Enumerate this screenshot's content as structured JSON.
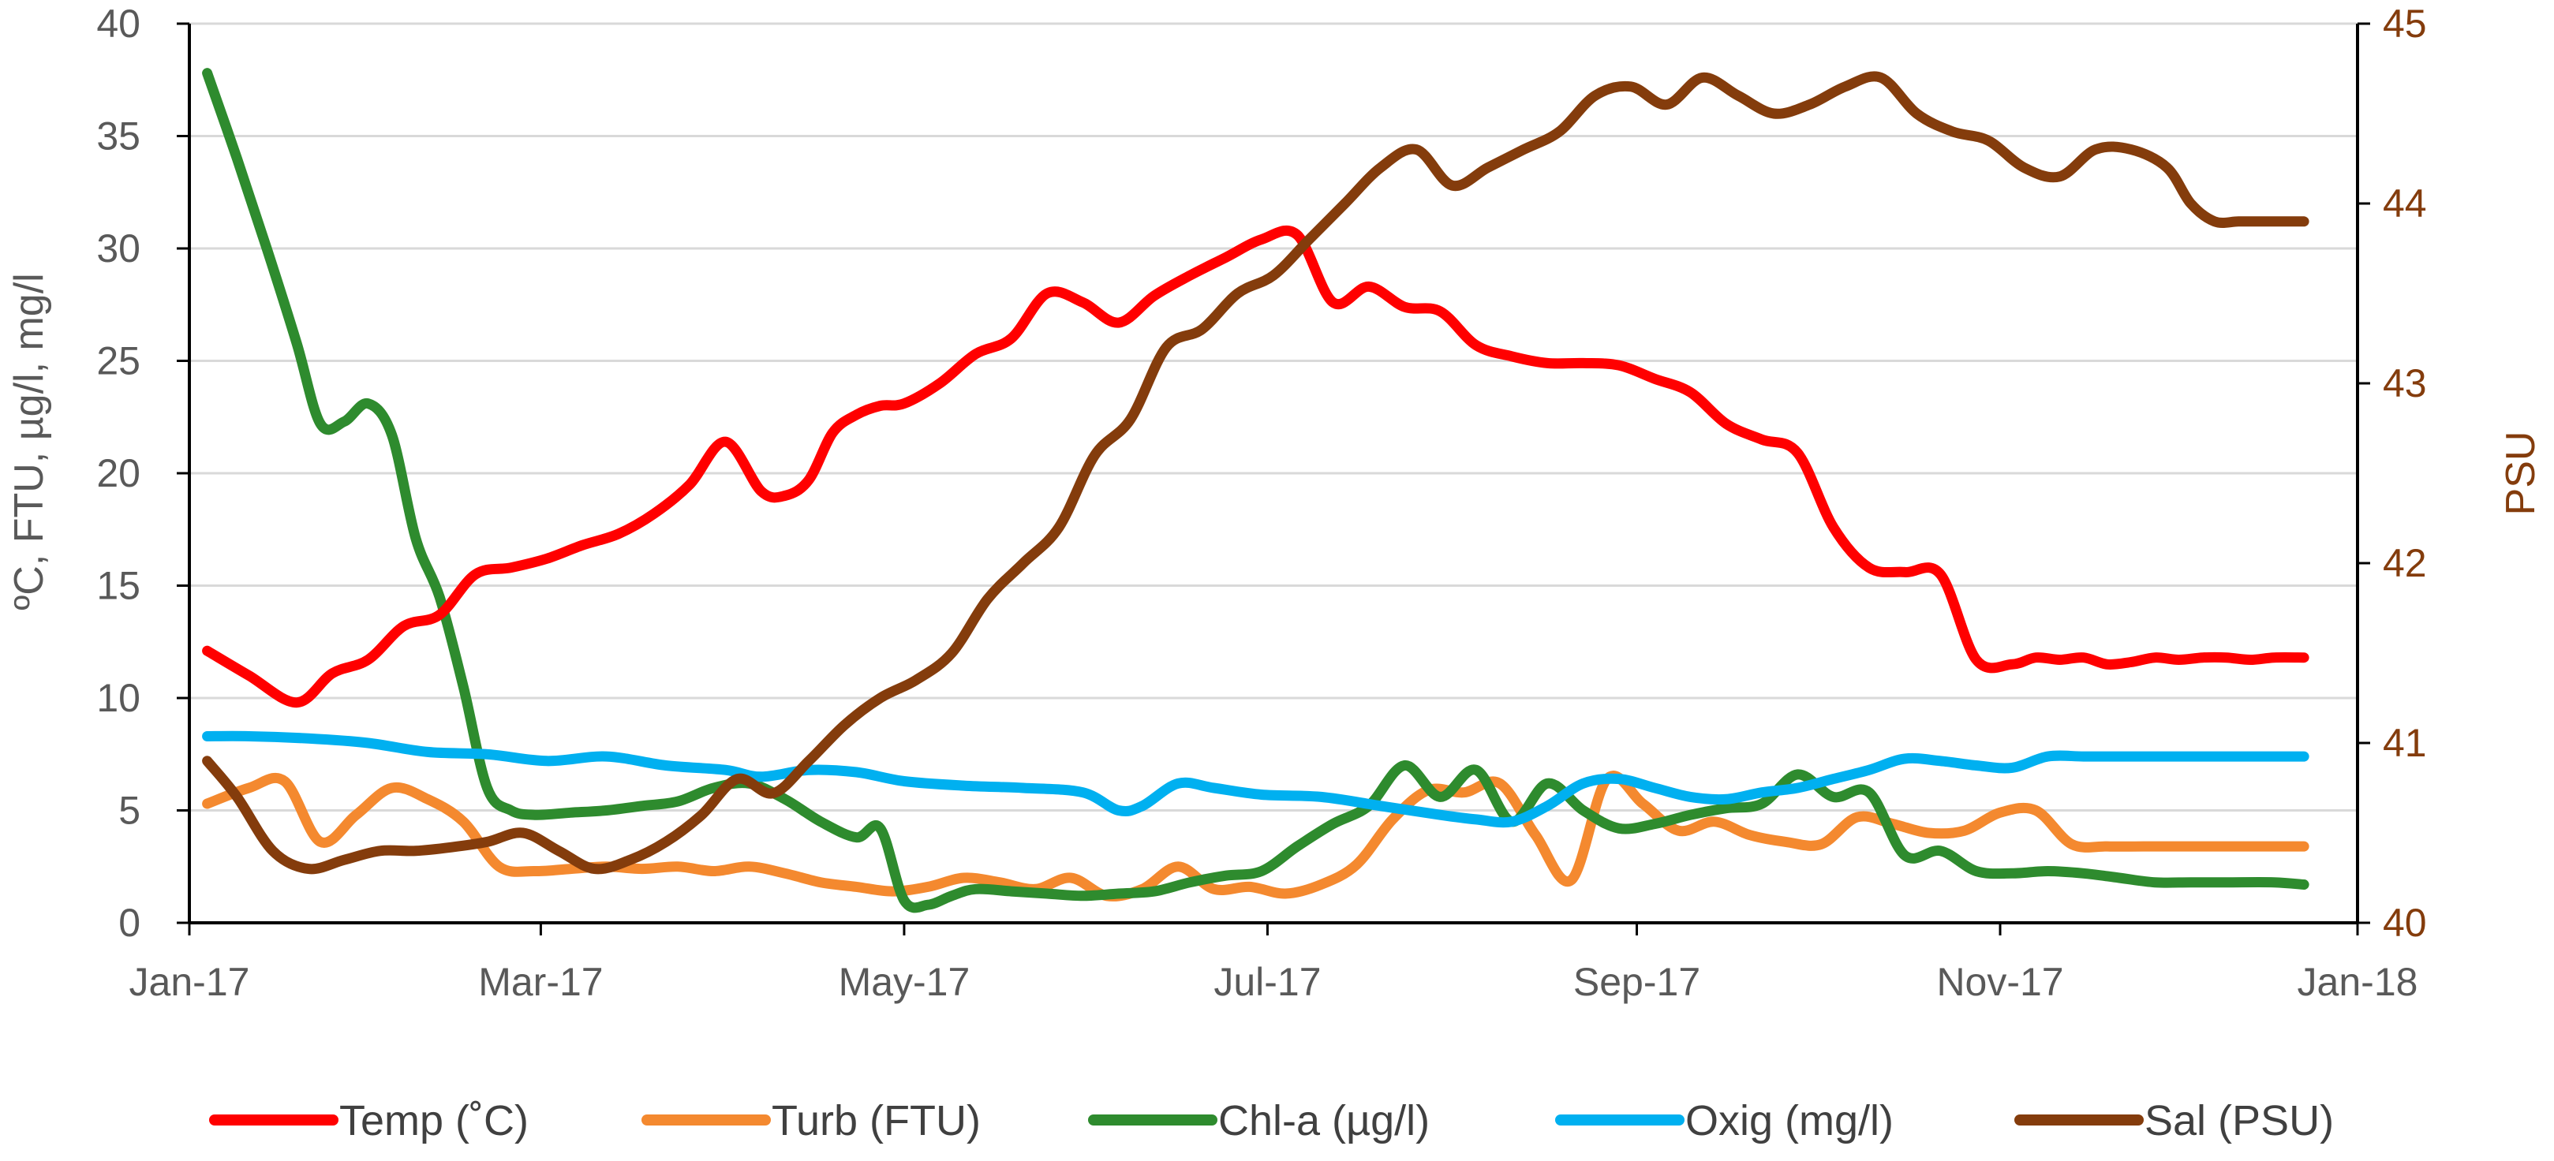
{
  "chart_data": {
    "type": "line",
    "xlabel": "",
    "ylabel": "ºC, FTU, µg/l, mg/l",
    "y2label": "PSU",
    "ylim": [
      0,
      40
    ],
    "yticks": [
      0,
      5,
      10,
      15,
      20,
      25,
      30,
      35,
      40
    ],
    "y2lim": [
      40,
      45
    ],
    "y2ticks": [
      40,
      41,
      42,
      43,
      44,
      45
    ],
    "xlim": [
      0,
      364
    ],
    "xticks": [
      0,
      59,
      120,
      181,
      243,
      304,
      364
    ],
    "xtick_labels": [
      "Jan-17",
      "Mar-17",
      "May-17",
      "Jul-17",
      "Sep-17",
      "Nov-17",
      "Jan-18"
    ],
    "grid": true,
    "legend_position": "bottom",
    "colors": {
      "axis_left": "#595959",
      "axis_right": "#843C0C",
      "grid": "#d9d9d9"
    },
    "series": [
      {
        "name": "Temp (˚C)",
        "axis": "left",
        "color": "#FF0000",
        "x": [
          3,
          10,
          18,
          24,
          30,
          36,
          42,
          48,
          54,
          60,
          66,
          72,
          78,
          84,
          90,
          96,
          100,
          104,
          108,
          112,
          116,
          120,
          126,
          132,
          138,
          144,
          150,
          156,
          162,
          168,
          174,
          180,
          186,
          192,
          198,
          204,
          210,
          216,
          222,
          228,
          234,
          240,
          246,
          252,
          258,
          264,
          270,
          276,
          282,
          288,
          294,
          300,
          306,
          310,
          314,
          318,
          322,
          326,
          330,
          334,
          338,
          342,
          346,
          350,
          355
        ],
        "values": [
          12.1,
          11.0,
          9.8,
          11.1,
          11.7,
          13.2,
          13.7,
          15.5,
          15.8,
          16.2,
          16.8,
          17.3,
          18.2,
          19.5,
          21.4,
          19.2,
          19.0,
          19.7,
          21.8,
          22.6,
          23.0,
          23.1,
          24.0,
          25.3,
          26.0,
          28.0,
          27.6,
          26.7,
          27.9,
          28.8,
          29.6,
          30.4,
          30.6,
          27.6,
          28.3,
          27.4,
          27.2,
          25.7,
          25.2,
          24.9,
          24.9,
          24.8,
          24.2,
          23.6,
          22.2,
          21.5,
          20.9,
          17.6,
          15.8,
          15.6,
          15.5,
          11.7,
          11.5,
          11.8,
          11.7,
          11.8,
          11.5,
          11.6,
          11.8,
          11.7,
          11.8,
          11.8,
          11.7,
          11.8,
          11.8
        ]
      },
      {
        "name": "Turb (FTU)",
        "axis": "left",
        "color": "#F4892F",
        "x": [
          3,
          10,
          16,
          22,
          28,
          34,
          40,
          46,
          52,
          58,
          64,
          70,
          76,
          82,
          88,
          94,
          100,
          106,
          112,
          118,
          124,
          130,
          136,
          142,
          148,
          154,
          160,
          166,
          172,
          178,
          184,
          190,
          196,
          202,
          208,
          214,
          220,
          226,
          232,
          238,
          244,
          250,
          256,
          262,
          268,
          274,
          280,
          286,
          292,
          298,
          304,
          310,
          316,
          322,
          328,
          334,
          340,
          346,
          352,
          355
        ],
        "values": [
          5.3,
          6.0,
          6.3,
          3.6,
          4.8,
          6.0,
          5.5,
          4.5,
          2.5,
          2.3,
          2.4,
          2.5,
          2.4,
          2.5,
          2.3,
          2.5,
          2.2,
          1.8,
          1.6,
          1.4,
          1.6,
          2.0,
          1.8,
          1.5,
          2.0,
          1.2,
          1.5,
          2.5,
          1.5,
          1.6,
          1.3,
          1.7,
          2.6,
          4.6,
          5.9,
          5.8,
          6.2,
          3.9,
          1.9,
          6.4,
          5.3,
          4.1,
          4.5,
          3.9,
          3.6,
          3.5,
          4.7,
          4.4,
          4.0,
          4.1,
          4.9,
          5.0,
          3.5,
          3.4,
          3.4,
          3.4,
          3.4,
          3.4,
          3.4,
          3.4
        ]
      },
      {
        "name": "Chl-a (µg/l)",
        "axis": "left",
        "color": "#2E8B2E",
        "x": [
          3,
          8,
          13,
          18,
          22,
          26,
          30,
          34,
          38,
          42,
          46,
          50,
          54,
          58,
          64,
          70,
          76,
          82,
          88,
          94,
          100,
          106,
          112,
          116,
          120,
          124,
          128,
          132,
          138,
          144,
          150,
          156,
          162,
          168,
          174,
          180,
          186,
          192,
          198,
          204,
          210,
          216,
          222,
          228,
          234,
          240,
          246,
          252,
          258,
          264,
          270,
          276,
          282,
          288,
          294,
          300,
          306,
          312,
          318,
          324,
          330,
          336,
          342,
          350,
          355
        ],
        "values": [
          37.8,
          34.0,
          30.0,
          25.8,
          22.2,
          22.3,
          23.1,
          21.7,
          17.1,
          14.5,
          10.5,
          6.0,
          5.0,
          4.8,
          4.9,
          5.0,
          5.2,
          5.4,
          6.0,
          6.2,
          5.5,
          4.5,
          3.8,
          4.2,
          1.0,
          0.8,
          1.2,
          1.5,
          1.4,
          1.3,
          1.2,
          1.3,
          1.4,
          1.8,
          2.1,
          2.3,
          3.4,
          4.4,
          5.2,
          7.0,
          5.6,
          6.8,
          4.5,
          6.2,
          5.0,
          4.2,
          4.4,
          4.8,
          5.1,
          5.3,
          6.6,
          5.6,
          5.8,
          3.0,
          3.2,
          2.3,
          2.2,
          2.3,
          2.2,
          2.0,
          1.8,
          1.8,
          1.8,
          1.8,
          1.7
        ]
      },
      {
        "name": "Oxig (mg/l)",
        "axis": "left",
        "color": "#00B0F0",
        "x": [
          3,
          10,
          20,
          30,
          40,
          50,
          60,
          70,
          80,
          90,
          96,
          104,
          112,
          120,
          130,
          140,
          150,
          156,
          160,
          166,
          172,
          180,
          190,
          200,
          210,
          216,
          222,
          228,
          234,
          240,
          246,
          252,
          258,
          264,
          270,
          276,
          282,
          288,
          294,
          300,
          306,
          312,
          318,
          324,
          330,
          336,
          342,
          350,
          355
        ],
        "values": [
          8.3,
          8.3,
          8.2,
          8.0,
          7.6,
          7.5,
          7.2,
          7.4,
          7.0,
          6.8,
          6.5,
          6.8,
          6.7,
          6.3,
          6.1,
          6.0,
          5.8,
          5.0,
          5.2,
          6.2,
          6.0,
          5.7,
          5.6,
          5.2,
          4.8,
          4.6,
          4.5,
          5.2,
          6.2,
          6.4,
          6.0,
          5.6,
          5.5,
          5.8,
          6.0,
          6.4,
          6.8,
          7.3,
          7.2,
          7.0,
          6.9,
          7.4,
          7.4,
          7.4,
          7.4,
          7.4,
          7.4,
          7.4,
          7.4
        ]
      },
      {
        "name": "Sal (PSU)",
        "axis": "right",
        "color": "#843C0C",
        "x": [
          3,
          8,
          14,
          20,
          26,
          32,
          38,
          44,
          50,
          56,
          62,
          68,
          74,
          80,
          86,
          92,
          98,
          104,
          110,
          116,
          122,
          128,
          134,
          140,
          146,
          152,
          158,
          164,
          170,
          176,
          182,
          188,
          194,
          200,
          206,
          212,
          218,
          224,
          230,
          236,
          242,
          248,
          254,
          260,
          266,
          272,
          278,
          284,
          290,
          296,
          302,
          308,
          314,
          320,
          326,
          332,
          336,
          340,
          344,
          348,
          352,
          355
        ],
        "values": [
          40.9,
          40.7,
          40.4,
          40.3,
          40.35,
          40.4,
          40.4,
          40.42,
          40.45,
          40.5,
          40.4,
          40.3,
          40.35,
          40.45,
          40.6,
          40.8,
          40.72,
          40.9,
          41.1,
          41.25,
          41.35,
          41.5,
          41.8,
          42.0,
          42.2,
          42.6,
          42.8,
          43.2,
          43.3,
          43.5,
          43.6,
          43.8,
          44.0,
          44.2,
          44.3,
          44.1,
          44.2,
          44.3,
          44.4,
          44.6,
          44.65,
          44.55,
          44.7,
          44.6,
          44.5,
          44.55,
          44.65,
          44.7,
          44.5,
          44.4,
          44.35,
          44.2,
          44.15,
          44.3,
          44.3,
          44.2,
          44.0,
          43.9,
          43.9,
          43.9,
          43.9,
          43.9
        ]
      }
    ]
  }
}
